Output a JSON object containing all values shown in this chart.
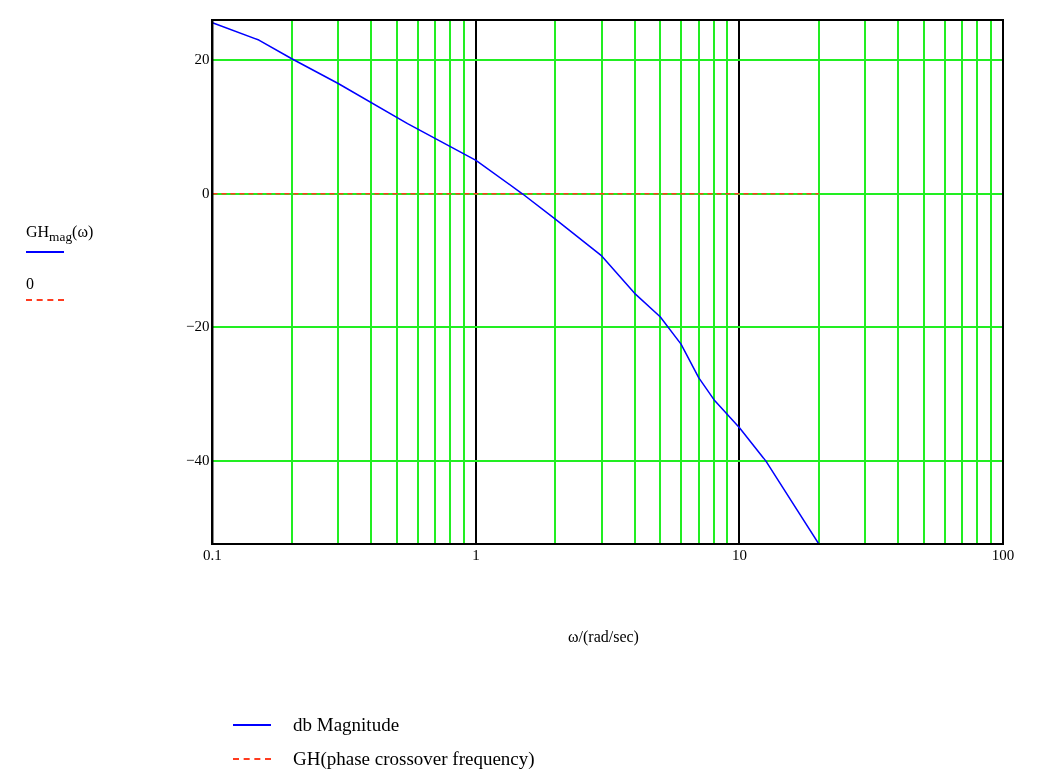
{
  "chart_data": {
    "type": "line",
    "xlabel": "ω/(rad/sec)",
    "annotations": [
      "GH$_{mag}$(ω)",
      "0"
    ],
    "log": "x",
    "grid": true,
    "legend": "bottom",
    "marker": "none",
    "xlim": [
      0.1,
      100
    ],
    "ylim": [
      -52.4,
      26
    ],
    "xticks": [
      0.1,
      {
        "value": 0.2,
        "label": null
      },
      {
        "value": 0.3,
        "label": null
      },
      {
        "value": 0.4,
        "label": null
      },
      {
        "value": 0.5,
        "label": null
      },
      {
        "value": 0.6,
        "label": null
      },
      {
        "value": 0.7,
        "label": null
      },
      {
        "value": 0.8,
        "label": null
      },
      {
        "value": 0.9,
        "label": null
      },
      1,
      {
        "value": 2,
        "label": null
      },
      {
        "value": 3,
        "label": null
      },
      {
        "value": 4,
        "label": null
      },
      {
        "value": 5,
        "label": null
      },
      {
        "value": 6,
        "label": null
      },
      {
        "value": 7,
        "label": null
      },
      {
        "value": 8,
        "label": null
      },
      {
        "value": 9,
        "label": null
      },
      10,
      {
        "value": 20,
        "label": null
      },
      {
        "value": 30,
        "label": null
      },
      {
        "value": 40,
        "label": null
      },
      {
        "value": 50,
        "label": null
      },
      {
        "value": 60,
        "label": null
      },
      {
        "value": 70,
        "label": null
      },
      {
        "value": 80,
        "label": null
      },
      {
        "value": 90,
        "label": null
      },
      100
    ],
    "yticks": [
      -40,
      -20,
      0,
      20
    ],
    "series": [
      {
        "name": "db Magnitude",
        "color": "#0000ff",
        "line_style": "solid",
        "x": [
          0.1,
          0.15,
          0.2,
          0.3,
          0.55,
          1,
          1.5,
          2,
          3,
          4,
          5,
          6,
          7,
          8,
          10,
          12.6,
          20
        ],
        "values": [
          25.6,
          23,
          20.2,
          16.5,
          10.5,
          5,
          0,
          -3.8,
          -9.3,
          -14.9,
          -18.4,
          -22.5,
          -27.5,
          -30.8,
          -35,
          -40,
          -52.4
        ]
      },
      {
        "name": "GH(phase crossover frequency)",
        "color": "#ff3b1f",
        "line_style": "dashed",
        "x": [
          0.1,
          20
        ],
        "values": [
          0,
          0
        ]
      }
    ]
  }
}
